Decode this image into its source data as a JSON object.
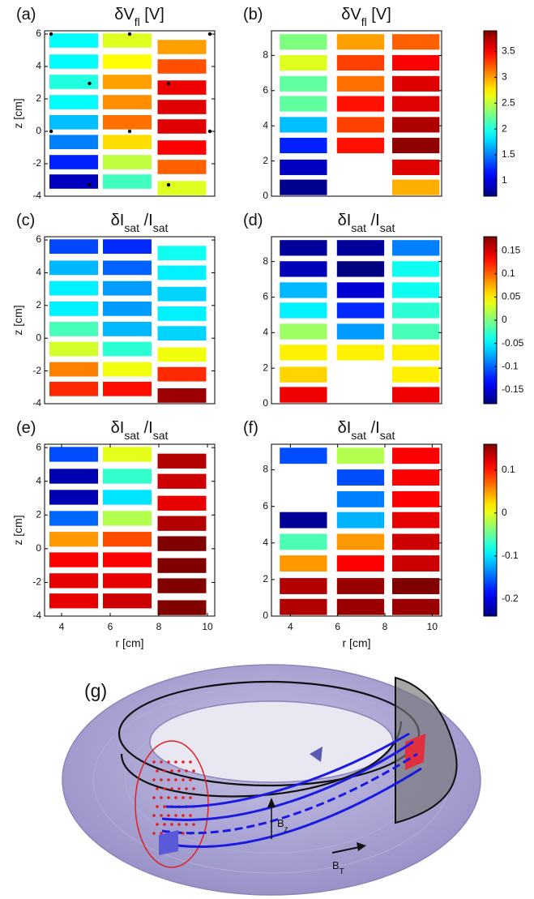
{
  "chart_data": [
    {
      "type": "heatmap",
      "label": "(a)",
      "title": [
        {
          "text": "δV"
        },
        {
          "text": "fl",
          "sub": true
        },
        {
          "text": " [V]"
        }
      ],
      "ylabel": "z [cm]",
      "xlim": [
        3.3,
        10.3
      ],
      "ylim": [
        -4,
        6.2
      ],
      "yticks": [
        -4,
        -2,
        0,
        2,
        4,
        6
      ],
      "colormap": "jet",
      "clim": [
        0.7,
        3.9
      ],
      "columns": [
        {
          "r": 4.5,
          "z": [
            5.6,
            4.3,
            3.05,
            1.8,
            0.56,
            -0.66,
            -1.9,
            -3.1
          ],
          "values": [
            1.9,
            1.9,
            2.0,
            1.9,
            1.7,
            1.5,
            1.2,
            0.9
          ]
        },
        {
          "r": 6.7,
          "z": [
            5.6,
            4.3,
            3.05,
            1.8,
            0.56,
            -0.66,
            -1.9,
            -3.1
          ],
          "values": [
            2.6,
            2.7,
            3.0,
            3.05,
            3.15,
            2.8,
            2.5,
            2.1
          ]
        },
        {
          "r": 8.95,
          "z": [
            5.2,
            4.0,
            2.7,
            1.5,
            0.3,
            -1.0,
            -2.2,
            -3.5
          ],
          "values": [
            3.0,
            3.25,
            3.55,
            3.6,
            3.6,
            3.5,
            3.2,
            2.6
          ]
        }
      ],
      "points": {
        "x": [
          3.57,
          6.8,
          10.1,
          5.15,
          8.4,
          3.57,
          6.8,
          10.1,
          5.15,
          8.4
        ],
        "y": [
          6.0,
          6.0,
          6.0,
          2.95,
          2.95,
          0,
          0,
          0,
          -3.3,
          -3.3
        ],
        "color": "#000000"
      }
    },
    {
      "type": "heatmap",
      "label": "(b)",
      "title": [
        {
          "text": "δV"
        },
        {
          "text": "fl",
          "sub": true
        },
        {
          "text": " [V]"
        }
      ],
      "xlim": [
        3.2,
        10.4
      ],
      "ylim": [
        0,
        9.4
      ],
      "yticks": [
        0,
        2,
        4,
        6,
        8
      ],
      "colormap": "jet",
      "clim": [
        0.7,
        3.9
      ],
      "cticks": [
        1,
        1.5,
        2,
        2.5,
        3,
        3.5
      ],
      "columns": [
        {
          "r": 4.55,
          "z": [
            8.77,
            7.58,
            6.39,
            5.25,
            4.06,
            2.88,
            1.64,
            0.5
          ],
          "values": [
            2.3,
            2.6,
            2.2,
            2.2,
            1.7,
            1.2,
            0.9,
            0.75
          ]
        },
        {
          "r": 6.97,
          "z": [
            8.77,
            7.58,
            6.39,
            5.25,
            4.06,
            2.88
          ],
          "values": [
            3.0,
            3.3,
            3.15,
            3.45,
            3.3,
            3.45
          ]
        },
        {
          "r": 9.31,
          "z": [
            8.77,
            7.58,
            6.39,
            5.25,
            4.06,
            2.88,
            1.64,
            0.5
          ],
          "values": [
            3.2,
            3.5,
            3.6,
            3.6,
            3.75,
            3.85,
            3.6,
            2.95
          ]
        }
      ]
    },
    {
      "type": "heatmap",
      "label": "(c)",
      "title": [
        {
          "text": "δI"
        },
        {
          "text": "sat",
          "sub": true
        },
        {
          "text": " /I"
        },
        {
          "text": "sat",
          "sub": true
        }
      ],
      "ylabel": "z [cm]",
      "xlim": [
        3.3,
        10.3
      ],
      "ylim": [
        -4,
        6.2
      ],
      "yticks": [
        -4,
        -2,
        0,
        2,
        4,
        6
      ],
      "colormap": "jet",
      "clim": [
        -0.18,
        0.18
      ],
      "columns": [
        {
          "r": 4.5,
          "z": [
            5.6,
            4.3,
            3.05,
            1.8,
            0.56,
            -0.66,
            -1.9,
            -3.1
          ],
          "values": [
            -0.11,
            -0.07,
            -0.05,
            -0.05,
            -0.02,
            0.03,
            0.09,
            0.12
          ]
        },
        {
          "r": 6.7,
          "z": [
            5.6,
            4.3,
            3.05,
            1.8,
            0.56,
            -0.66,
            -1.9,
            -3.1
          ],
          "values": [
            -0.12,
            -0.1,
            -0.08,
            -0.08,
            -0.07,
            -0.03,
            0.04,
            0.13
          ]
        },
        {
          "r": 8.95,
          "z": [
            5.2,
            4.0,
            2.7,
            1.5,
            0.3,
            -1.0,
            -2.2,
            -3.5
          ],
          "values": [
            -0.04,
            -0.05,
            -0.06,
            -0.05,
            -0.06,
            0.04,
            0.12,
            0.17
          ]
        }
      ]
    },
    {
      "type": "heatmap",
      "label": "(d)",
      "title": [
        {
          "text": "δI"
        },
        {
          "text": "sat",
          "sub": true
        },
        {
          "text": " /I"
        },
        {
          "text": "sat",
          "sub": true
        }
      ],
      "xlim": [
        3.2,
        10.4
      ],
      "ylim": [
        0,
        9.4
      ],
      "yticks": [
        0,
        2,
        4,
        6,
        8
      ],
      "colormap": "jet",
      "clim": [
        -0.18,
        0.18
      ],
      "cticks": [
        -0.15,
        -0.1,
        -0.05,
        0,
        0.05,
        0.1,
        0.15
      ],
      "columns": [
        {
          "r": 4.55,
          "z": [
            8.77,
            7.58,
            6.39,
            5.25,
            4.06,
            2.88,
            1.64,
            0.5
          ],
          "values": [
            -0.17,
            -0.16,
            -0.07,
            -0.05,
            0.01,
            0.05,
            0.06,
            0.14
          ]
        },
        {
          "r": 6.97,
          "z": [
            8.77,
            7.58,
            6.39,
            5.25,
            4.06,
            2.88
          ],
          "values": [
            -0.17,
            -0.18,
            -0.15,
            -0.12,
            -0.08,
            0.05
          ]
        },
        {
          "r": 9.31,
          "z": [
            8.77,
            7.58,
            6.39,
            5.25,
            4.06,
            2.88,
            1.64,
            0.5
          ],
          "values": [
            -0.09,
            -0.04,
            -0.04,
            -0.03,
            -0.02,
            0.05,
            0.05,
            0.14
          ]
        }
      ]
    },
    {
      "type": "heatmap",
      "label": "(e)",
      "title": [
        {
          "text": "δI"
        },
        {
          "text": "sat",
          "sub": true
        },
        {
          "text": " /I"
        },
        {
          "text": "sat",
          "sub": true
        }
      ],
      "xlabel": "r [cm]",
      "ylabel": "z [cm]",
      "xlim": [
        3.3,
        10.3
      ],
      "ylim": [
        -4,
        6.2
      ],
      "xticks": [
        4,
        6,
        8,
        10
      ],
      "yticks": [
        -4,
        -2,
        0,
        2,
        4,
        6
      ],
      "colormap": "jet",
      "clim": [
        -0.24,
        0.16
      ],
      "columns": [
        {
          "r": 4.5,
          "z": [
            5.6,
            4.3,
            3.05,
            1.8,
            0.56,
            -0.66,
            -1.9,
            -3.1
          ],
          "values": [
            -0.16,
            -0.22,
            -0.22,
            -0.15,
            0.05,
            0.11,
            0.12,
            0.12
          ]
        },
        {
          "r": 6.7,
          "z": [
            5.6,
            4.3,
            3.05,
            1.8,
            0.56,
            -0.66,
            -1.9,
            -3.1
          ],
          "values": [
            0.0,
            -0.07,
            -0.1,
            -0.02,
            0.08,
            0.11,
            0.12,
            0.13
          ]
        },
        {
          "r": 8.95,
          "z": [
            5.2,
            4.0,
            2.7,
            1.5,
            0.3,
            -1.0,
            -2.2,
            -3.5
          ],
          "values": [
            0.14,
            0.13,
            0.12,
            0.14,
            0.16,
            0.16,
            0.16,
            0.16
          ]
        }
      ]
    },
    {
      "type": "heatmap",
      "label": "(f)",
      "title": [
        {
          "text": "δI"
        },
        {
          "text": "sat",
          "sub": true
        },
        {
          "text": " /I"
        },
        {
          "text": "sat",
          "sub": true
        }
      ],
      "xlabel": "r [cm]",
      "xlim": [
        3.2,
        10.4
      ],
      "ylim": [
        0,
        9.4
      ],
      "xticks": [
        4,
        6,
        8,
        10
      ],
      "yticks": [
        0,
        2,
        4,
        6,
        8
      ],
      "colormap": "jet",
      "clim": [
        -0.24,
        0.16
      ],
      "cticks": [
        -0.2,
        -0.1,
        0,
        0.1
      ],
      "columns": [
        {
          "r": 4.55,
          "z": [
            8.77,
            5.25,
            4.06,
            2.88,
            1.64,
            0.5
          ],
          "values": [
            -0.16,
            -0.23,
            -0.06,
            0.05,
            0.14,
            0.14
          ]
        },
        {
          "r": 6.97,
          "z": [
            8.77,
            7.58,
            6.39,
            5.25,
            4.06,
            2.88,
            1.64,
            0.5
          ],
          "values": [
            -0.02,
            -0.16,
            -0.14,
            -0.12,
            0.05,
            0.11,
            0.15,
            0.15
          ]
        },
        {
          "r": 9.31,
          "z": [
            8.77,
            7.58,
            6.39,
            5.25,
            4.06,
            2.88,
            1.64,
            0.5
          ],
          "values": [
            0.11,
            0.11,
            0.11,
            0.12,
            0.13,
            0.13,
            0.16,
            0.15
          ]
        }
      ]
    }
  ],
  "diagram": {
    "label": "(g)",
    "bz": [
      {
        "text": "B"
      },
      {
        "text": "z",
        "sub": true
      }
    ],
    "bt": [
      {
        "text": "B"
      },
      {
        "text": "T",
        "sub": true
      }
    ]
  }
}
